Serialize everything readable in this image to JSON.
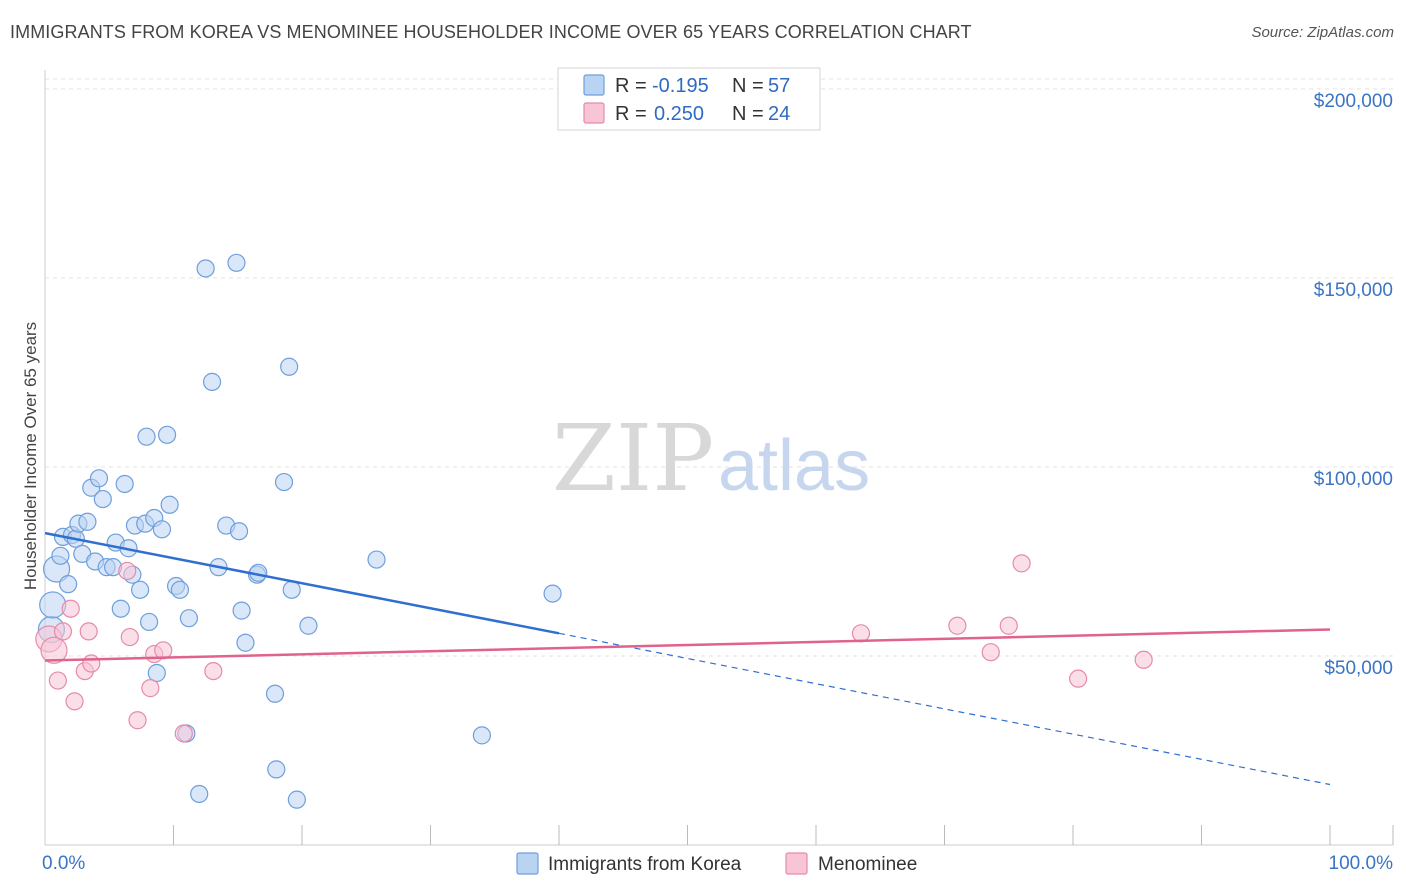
{
  "header": {
    "title": "IMMIGRANTS FROM KOREA VS MENOMINEE HOUSEHOLDER INCOME OVER 65 YEARS CORRELATION CHART",
    "source": "Source: ZipAtlas.com"
  },
  "watermark": {
    "zip": "ZIP",
    "atlas": "atlas"
  },
  "colors": {
    "korea_fill": "#b9d3f3",
    "korea_stroke": "#6f9fdc",
    "korea_line": "#2f6fd0",
    "menominee_fill": "#f8c5d5",
    "menominee_stroke": "#e68aab",
    "menominee_line": "#e0638c",
    "grid": "#e3e3e3",
    "axis_label": "#3a74c4"
  },
  "stats_legend": [
    {
      "r_label": "R =",
      "r_value": "-0.195",
      "n_label": "N =",
      "n_value": "57"
    },
    {
      "r_label": "R =",
      "r_value": "0.250",
      "n_label": "N =",
      "n_value": "24"
    }
  ],
  "chart_data": {
    "type": "scatter",
    "title": "IMMIGRANTS FROM KOREA VS MENOMINEE HOUSEHOLDER INCOME OVER 65 YEARS CORRELATION CHART",
    "xlabel": "",
    "ylabel": "Householder Income Over 65 years",
    "xlim": [
      0,
      100
    ],
    "ylim": [
      0,
      205000
    ],
    "x_tick_labels": [
      "0.0%",
      "100.0%"
    ],
    "y_ticks": [
      50000,
      100000,
      150000,
      200000
    ],
    "y_tick_labels": [
      "$50,000",
      "$100,000",
      "$150,000",
      "$200,000"
    ],
    "grid": true,
    "legend_position": "bottom-center",
    "series": [
      {
        "name": "Immigrants from Korea",
        "color": "#6f9fdc",
        "points": [
          [
            0.5,
            57000
          ],
          [
            0.6,
            63500
          ],
          [
            0.9,
            73000
          ],
          [
            1.2,
            76500
          ],
          [
            1.4,
            81500
          ],
          [
            1.8,
            69000
          ],
          [
            2.1,
            82000
          ],
          [
            2.4,
            81000
          ],
          [
            2.6,
            85000
          ],
          [
            2.9,
            77000
          ],
          [
            3.3,
            85500
          ],
          [
            3.6,
            94500
          ],
          [
            3.9,
            75000
          ],
          [
            4.2,
            97000
          ],
          [
            4.5,
            91500
          ],
          [
            4.8,
            73500
          ],
          [
            5.3,
            73500
          ],
          [
            5.5,
            80000
          ],
          [
            5.9,
            62500
          ],
          [
            6.2,
            95500
          ],
          [
            6.5,
            78500
          ],
          [
            6.8,
            71500
          ],
          [
            7.0,
            84500
          ],
          [
            7.4,
            67500
          ],
          [
            7.8,
            85000
          ],
          [
            7.9,
            108000
          ],
          [
            8.1,
            59000
          ],
          [
            8.5,
            86500
          ],
          [
            8.7,
            45500
          ],
          [
            9.1,
            83500
          ],
          [
            9.5,
            108500
          ],
          [
            9.7,
            90000
          ],
          [
            10.2,
            68500
          ],
          [
            10.5,
            67500
          ],
          [
            11.2,
            60000
          ],
          [
            11.0,
            29500
          ],
          [
            12.0,
            13500
          ],
          [
            12.5,
            152500
          ],
          [
            13.0,
            122500
          ],
          [
            13.5,
            73500
          ],
          [
            14.1,
            84500
          ],
          [
            14.9,
            154000
          ],
          [
            15.1,
            83000
          ],
          [
            15.3,
            62000
          ],
          [
            15.6,
            53500
          ],
          [
            16.5,
            71500
          ],
          [
            16.6,
            72000
          ],
          [
            17.9,
            40000
          ],
          [
            18.0,
            20000
          ],
          [
            18.6,
            96000
          ],
          [
            19.0,
            126500
          ],
          [
            19.2,
            67500
          ],
          [
            19.6,
            12000
          ],
          [
            20.5,
            58000
          ],
          [
            25.8,
            75500
          ],
          [
            34.0,
            29000
          ],
          [
            39.5,
            66500
          ]
        ]
      },
      {
        "name": "Menominee",
        "color": "#e68aab",
        "points": [
          [
            0.3,
            54500
          ],
          [
            0.7,
            51500
          ],
          [
            1.0,
            43500
          ],
          [
            1.4,
            56500
          ],
          [
            2.0,
            62500
          ],
          [
            2.3,
            38000
          ],
          [
            3.1,
            46000
          ],
          [
            3.4,
            56500
          ],
          [
            3.6,
            48000
          ],
          [
            6.4,
            72500
          ],
          [
            6.6,
            55000
          ],
          [
            7.2,
            33000
          ],
          [
            8.2,
            41500
          ],
          [
            8.5,
            50500
          ],
          [
            9.2,
            51500
          ],
          [
            10.8,
            29500
          ],
          [
            13.1,
            46000
          ],
          [
            63.5,
            56000
          ],
          [
            71.0,
            58000
          ],
          [
            73.6,
            51000
          ],
          [
            75.0,
            58000
          ],
          [
            76.0,
            74500
          ],
          [
            80.4,
            44000
          ],
          [
            85.5,
            49000
          ]
        ]
      }
    ],
    "trendlines": [
      {
        "series": "Immigrants from Korea",
        "x": [
          0,
          40
        ],
        "y": [
          82500,
          56000
        ],
        "dashed_extension_to": [
          100,
          16000
        ]
      },
      {
        "series": "Menominee",
        "x": [
          0,
          100
        ],
        "y": [
          48800,
          57000
        ]
      }
    ]
  },
  "bottom_legend": [
    {
      "label": "Immigrants from Korea"
    },
    {
      "label": "Menominee"
    }
  ]
}
